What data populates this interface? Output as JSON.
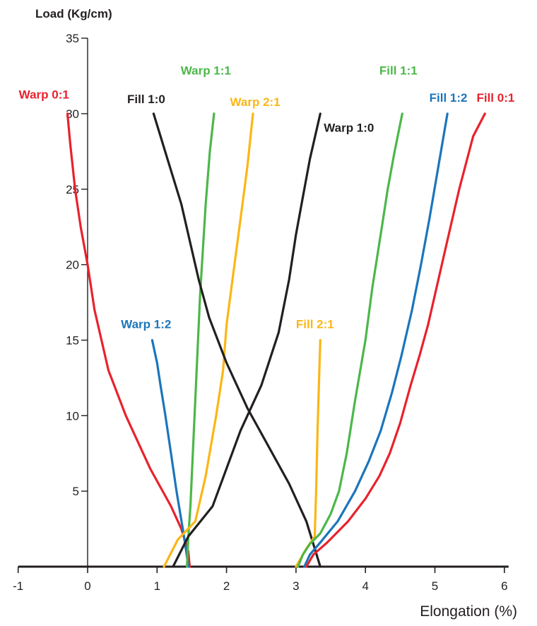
{
  "chart_data": {
    "type": "line",
    "title": "",
    "xlabel": "Elongation (%)",
    "ylabel": "Load (Kg/cm)",
    "xlim": [
      -1,
      6
    ],
    "ylim": [
      0,
      35
    ],
    "x_ticks": [
      "-1",
      "0",
      "1",
      "2",
      "3",
      "4",
      "5",
      "6"
    ],
    "y_ticks": [
      "5",
      "10",
      "15",
      "20",
      "25",
      "30",
      "35"
    ],
    "grid": false,
    "legend": "none",
    "series": [
      {
        "name": "Warp 0:1",
        "color": "#e8222d",
        "points": [
          [
            1.47,
            0
          ],
          [
            1.45,
            1
          ],
          [
            1.35,
            2.5
          ],
          [
            1.2,
            4
          ],
          [
            0.9,
            6.5
          ],
          [
            0.55,
            10
          ],
          [
            0.3,
            13
          ],
          [
            0.1,
            17
          ],
          [
            0,
            20
          ],
          [
            -0.1,
            22.5
          ],
          [
            -0.18,
            25
          ],
          [
            -0.25,
            28
          ],
          [
            -0.29,
            30
          ]
        ]
      },
      {
        "name": "Warp 1:2",
        "color": "#1b75bb",
        "points": [
          [
            1.45,
            0
          ],
          [
            1.42,
            1
          ],
          [
            1.37,
            2.5
          ],
          [
            1.28,
            5
          ],
          [
            1.2,
            7.5
          ],
          [
            1.12,
            10
          ],
          [
            1.05,
            12
          ],
          [
            1.0,
            13.5
          ],
          [
            0.93,
            15
          ]
        ]
      },
      {
        "name": "Warp 1:1",
        "color": "#4cb749",
        "points": [
          [
            1.43,
            0
          ],
          [
            1.45,
            2
          ],
          [
            1.48,
            4
          ],
          [
            1.52,
            8
          ],
          [
            1.57,
            13
          ],
          [
            1.62,
            18
          ],
          [
            1.7,
            24
          ],
          [
            1.76,
            27.5
          ],
          [
            1.82,
            30
          ]
        ]
      },
      {
        "name": "Warp 2:1",
        "color": "#fbb616",
        "points": [
          [
            1.1,
            0
          ],
          [
            1.3,
            1.8
          ],
          [
            1.55,
            3
          ],
          [
            1.7,
            6
          ],
          [
            1.85,
            10
          ],
          [
            1.95,
            13
          ],
          [
            2.0,
            16
          ],
          [
            2.1,
            19.5
          ],
          [
            2.2,
            23
          ],
          [
            2.3,
            26.5
          ],
          [
            2.38,
            30
          ]
        ]
      },
      {
        "name": "Fill 1:0",
        "color": "#231f20",
        "points": [
          [
            0.95,
            30
          ],
          [
            1.15,
            27
          ],
          [
            1.35,
            24
          ],
          [
            1.45,
            22
          ],
          [
            1.6,
            19
          ],
          [
            1.75,
            16.5
          ],
          [
            2.0,
            13.5
          ],
          [
            2.3,
            10.5
          ],
          [
            2.6,
            8
          ],
          [
            2.9,
            5.5
          ],
          [
            3.15,
            3
          ],
          [
            3.35,
            0
          ]
        ]
      },
      {
        "name": "Warp 1:0",
        "color": "#231f20",
        "points": [
          [
            1.23,
            0
          ],
          [
            1.45,
            2
          ],
          [
            1.8,
            4
          ],
          [
            2.0,
            6.5
          ],
          [
            2.2,
            9
          ],
          [
            2.5,
            12
          ],
          [
            2.75,
            15.5
          ],
          [
            2.9,
            19
          ],
          [
            3.0,
            22
          ],
          [
            3.1,
            24.5
          ],
          [
            3.2,
            27
          ],
          [
            3.35,
            30
          ]
        ]
      },
      {
        "name": "Fill 2:1",
        "color": "#fbb616",
        "points": [
          [
            3.0,
            0
          ],
          [
            3.15,
            1.2
          ],
          [
            3.27,
            2
          ],
          [
            3.29,
            5
          ],
          [
            3.31,
            9
          ],
          [
            3.33,
            12
          ],
          [
            3.35,
            15
          ]
        ]
      },
      {
        "name": "Fill 1:1",
        "color": "#4cb749",
        "points": [
          [
            3.03,
            0
          ],
          [
            3.1,
            0.8
          ],
          [
            3.2,
            1.5
          ],
          [
            3.35,
            2.2
          ],
          [
            3.5,
            3.5
          ],
          [
            3.62,
            5
          ],
          [
            3.73,
            7.5
          ],
          [
            3.85,
            11
          ],
          [
            4.0,
            15
          ],
          [
            4.1,
            18.5
          ],
          [
            4.22,
            22
          ],
          [
            4.32,
            25
          ],
          [
            4.42,
            27.5
          ],
          [
            4.53,
            30
          ]
        ]
      },
      {
        "name": "Fill 1:2",
        "color": "#1b75bb",
        "points": [
          [
            3.12,
            0
          ],
          [
            3.2,
            0.8
          ],
          [
            3.35,
            1.6
          ],
          [
            3.6,
            3
          ],
          [
            3.85,
            5
          ],
          [
            4.05,
            7
          ],
          [
            4.22,
            9
          ],
          [
            4.38,
            11.5
          ],
          [
            4.52,
            14
          ],
          [
            4.67,
            17
          ],
          [
            4.8,
            20
          ],
          [
            4.92,
            23
          ],
          [
            5.05,
            26.5
          ],
          [
            5.18,
            30
          ]
        ]
      },
      {
        "name": "Fill 0:1",
        "color": "#e8222d",
        "points": [
          [
            3.15,
            0
          ],
          [
            3.25,
            0.8
          ],
          [
            3.45,
            1.6
          ],
          [
            3.75,
            3
          ],
          [
            4.0,
            4.5
          ],
          [
            4.2,
            6
          ],
          [
            4.35,
            7.5
          ],
          [
            4.5,
            9.5
          ],
          [
            4.65,
            12
          ],
          [
            4.78,
            14
          ],
          [
            4.9,
            16
          ],
          [
            5.0,
            18
          ],
          [
            5.15,
            21
          ],
          [
            5.35,
            25
          ],
          [
            5.55,
            28.5
          ],
          [
            5.72,
            30
          ]
        ]
      }
    ],
    "labels": [
      {
        "text": "Warp 0:1",
        "color": "#e8222d",
        "x": -0.99,
        "y": 31.0
      },
      {
        "text": "Fill 1:0",
        "color": "#231f20",
        "x": 0.57,
        "y": 30.7
      },
      {
        "text": "Warp 1:1",
        "color": "#4cb749",
        "x": 1.34,
        "y": 32.6
      },
      {
        "text": "Warp 2:1",
        "color": "#fbb616",
        "x": 2.05,
        "y": 30.5
      },
      {
        "text": "Warp 1:0",
        "color": "#231f20",
        "x": 3.4,
        "y": 28.8
      },
      {
        "text": "Fill 1:1",
        "color": "#4cb749",
        "x": 4.2,
        "y": 32.6
      },
      {
        "text": "Fill 1:2",
        "color": "#1b75bb",
        "x": 4.92,
        "y": 30.8
      },
      {
        "text": "Fill 0:1",
        "color": "#e8222d",
        "x": 5.6,
        "y": 30.8
      },
      {
        "text": "Warp 1:2",
        "color": "#1b75bb",
        "x": 0.48,
        "y": 15.8
      },
      {
        "text": "Fill 2:1",
        "color": "#fbb616",
        "x": 3.0,
        "y": 15.8
      }
    ]
  }
}
